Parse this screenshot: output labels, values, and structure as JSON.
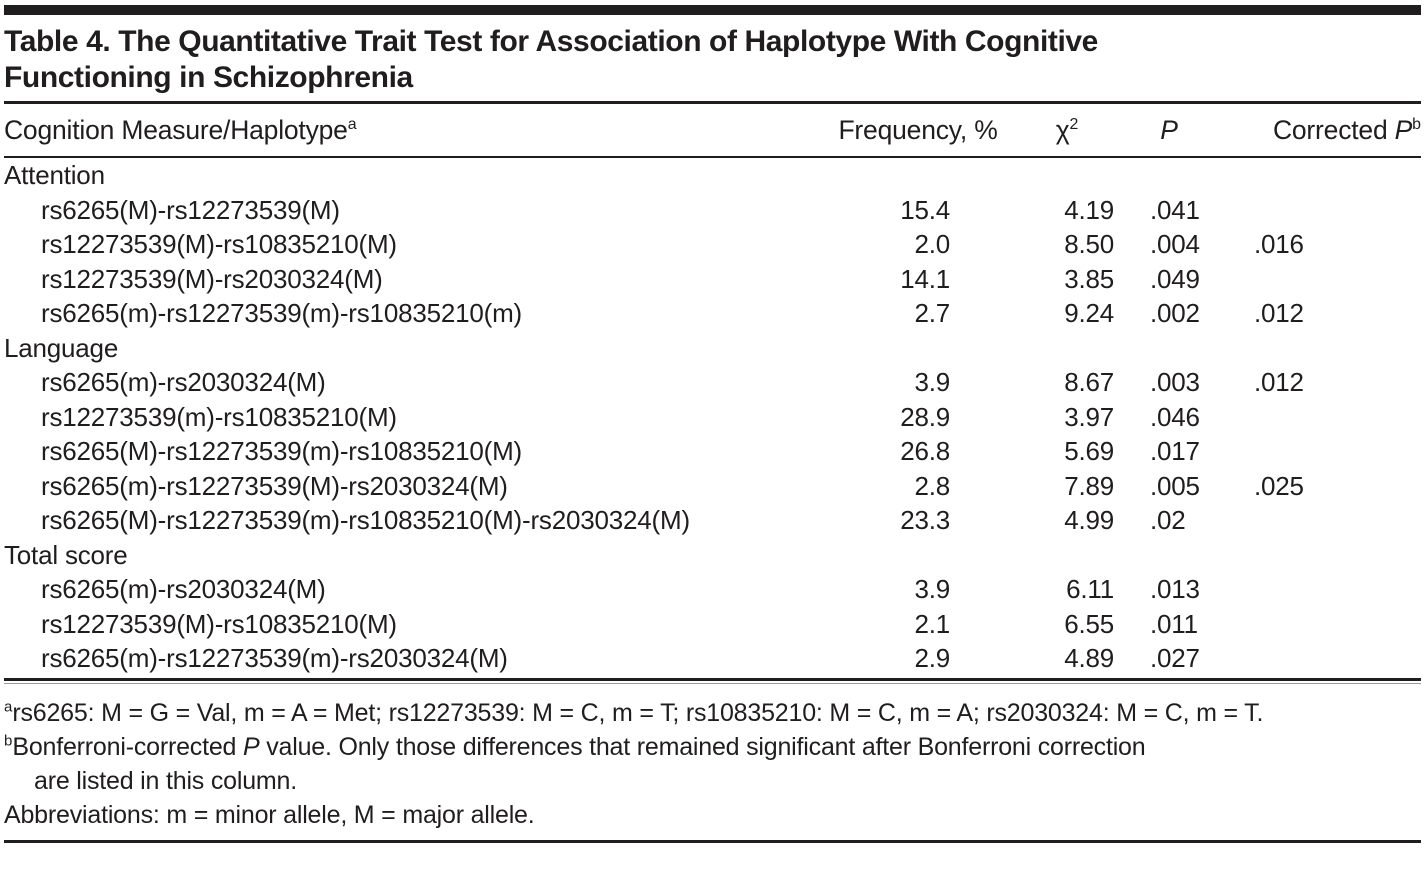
{
  "title": {
    "line1": "Table 4. The Quantitative Trait Test for Association of Haplotype With Cognitive",
    "line2": "Functioning in Schizophrenia"
  },
  "table": {
    "header": {
      "col1": {
        "label": "Cognition Measure/Haplotype",
        "sup": "a"
      },
      "col2": {
        "label": "Frequency, %"
      },
      "col3": {
        "label": "χ",
        "sup": "2"
      },
      "col4": {
        "label": "P"
      },
      "col5": {
        "label": "Corrected ",
        "italic": "P",
        "sup": "b"
      }
    },
    "sections": [
      {
        "name": "Attention",
        "rows": [
          {
            "haplotype": "rs6265(M)-rs12273539(M)",
            "frequency": "15.4",
            "chi2": "4.19",
            "p": ".041",
            "corrected_p": ""
          },
          {
            "haplotype": "rs12273539(M)-rs10835210(M)",
            "frequency": "2.0",
            "chi2": "8.50",
            "p": ".004",
            "corrected_p": ".016"
          },
          {
            "haplotype": "rs12273539(M)-rs2030324(M)",
            "frequency": "14.1",
            "chi2": "3.85",
            "p": ".049",
            "corrected_p": ""
          },
          {
            "haplotype": "rs6265(m)-rs12273539(m)-rs10835210(m)",
            "frequency": "2.7",
            "chi2": "9.24",
            "p": ".002",
            "corrected_p": ".012"
          }
        ]
      },
      {
        "name": "Language",
        "rows": [
          {
            "haplotype": "rs6265(m)-rs2030324(M)",
            "frequency": "3.9",
            "chi2": "8.67",
            "p": ".003",
            "corrected_p": ".012"
          },
          {
            "haplotype": "rs12273539(m)-rs10835210(M)",
            "frequency": "28.9",
            "chi2": "3.97",
            "p": ".046",
            "corrected_p": ""
          },
          {
            "haplotype": "rs6265(M)-rs12273539(m)-rs10835210(M)",
            "frequency": "26.8",
            "chi2": "5.69",
            "p": ".017",
            "corrected_p": ""
          },
          {
            "haplotype": "rs6265(m)-rs12273539(M)-rs2030324(M)",
            "frequency": "2.8",
            "chi2": "7.89",
            "p": ".005",
            "corrected_p": ".025"
          },
          {
            "haplotype": "rs6265(M)-rs12273539(m)-rs10835210(M)-rs2030324(M)",
            "frequency": "23.3",
            "chi2": "4.99",
            "p": ".02",
            "corrected_p": ""
          }
        ]
      },
      {
        "name": "Total score",
        "rows": [
          {
            "haplotype": "rs6265(m)-rs2030324(M)",
            "frequency": "3.9",
            "chi2": "6.11",
            "p": ".013",
            "corrected_p": ""
          },
          {
            "haplotype": "rs12273539(M)-rs10835210(M)",
            "frequency": "2.1",
            "chi2": "6.55",
            "p": ".011",
            "corrected_p": ""
          },
          {
            "haplotype": "rs6265(m)-rs12273539(m)-rs2030324(M)",
            "frequency": "2.9",
            "chi2": "4.89",
            "p": ".027",
            "corrected_p": ""
          }
        ]
      }
    ]
  },
  "footnotes": {
    "a": {
      "marker": "a",
      "text": "rs6265: M = G = Val, m = A = Met; rs12273539: M = C, m = T; rs10835210: M = C, m = A; rs2030324: M = C, m = T."
    },
    "b": {
      "marker": "b",
      "pre": "Bonferroni-corrected ",
      "italic": "P",
      "post": " value. Only those differences that remained significant after Bonferroni correction",
      "cont": "are listed in this column."
    },
    "abbreviations": "Abbreviations: m = minor allele, M = major allele."
  },
  "colors": {
    "text": "#201d1e",
    "rule_light": "#9b9b9b",
    "background": "#ffffff"
  }
}
